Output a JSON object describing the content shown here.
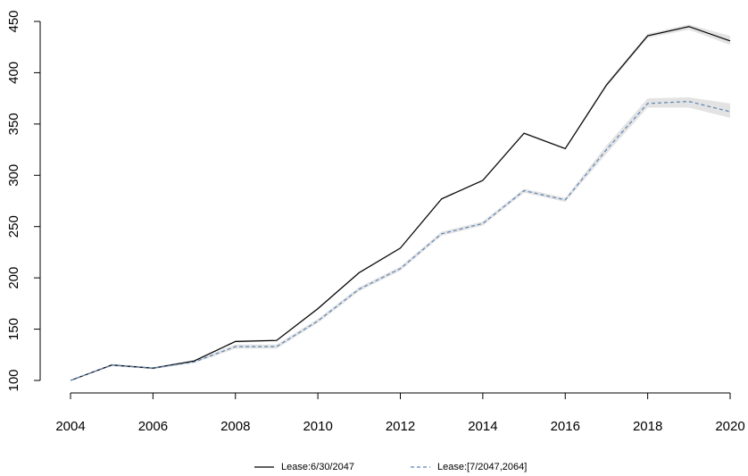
{
  "chart_data": {
    "type": "line",
    "x": [
      2004,
      2005,
      2006,
      2007,
      2008,
      2009,
      2010,
      2011,
      2012,
      2013,
      2014,
      2015,
      2016,
      2017,
      2018,
      2019,
      2020
    ],
    "xlim": [
      2004,
      2020
    ],
    "xticks": [
      2004,
      2006,
      2008,
      2010,
      2012,
      2014,
      2016,
      2018,
      2020
    ],
    "ylim": [
      100,
      450
    ],
    "yticks": [
      100,
      150,
      200,
      250,
      300,
      350,
      400,
      450
    ],
    "grid": false,
    "legend": "bottom",
    "band_color": "#e3e3e3",
    "series": [
      {
        "name": "Lease:6/30/2047",
        "color": "#000000",
        "dashed": false,
        "values": [
          100,
          115,
          112,
          119,
          138,
          139,
          170,
          205,
          229,
          277,
          295,
          341,
          326,
          388,
          436,
          445,
          431
        ],
        "lower": [
          100,
          114,
          111,
          118,
          137,
          138,
          169,
          204,
          228,
          276,
          294,
          340,
          325,
          386,
          434,
          442,
          427
        ],
        "upper": [
          100,
          116,
          113,
          120,
          139,
          140,
          171,
          206,
          230,
          278,
          296,
          342,
          327,
          390,
          438,
          447,
          436
        ]
      },
      {
        "name": "Lease:[7/2047,2064]",
        "color": "#5b84b8",
        "dashed": true,
        "values": [
          100,
          115,
          112,
          118,
          133,
          133,
          158,
          189,
          209,
          243,
          253,
          285,
          276,
          325,
          370,
          372,
          362
        ],
        "lower": [
          100,
          114,
          111,
          117,
          131,
          131,
          156,
          187,
          207,
          241,
          251,
          283,
          274,
          321,
          366,
          366,
          356
        ],
        "upper": [
          100,
          116,
          113,
          119,
          135,
          135,
          160,
          191,
          211,
          245,
          255,
          287,
          278,
          329,
          375,
          376,
          370
        ]
      }
    ]
  }
}
